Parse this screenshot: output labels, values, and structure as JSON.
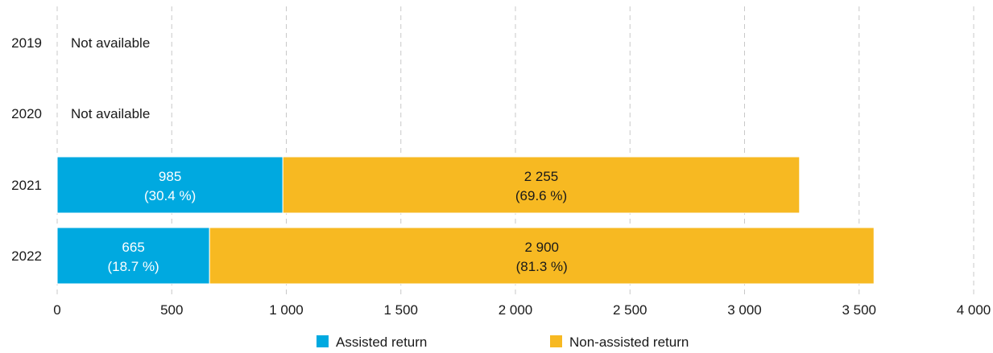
{
  "chart_data": {
    "type": "bar",
    "orientation": "horizontal",
    "stacked": true,
    "title": "",
    "xlabel": "",
    "ylabel": "",
    "categories": [
      "2019",
      "2020",
      "2021",
      "2022"
    ],
    "series": [
      {
        "name": "Assisted return",
        "color": "#00A9E0",
        "label_color": "#ffffff",
        "values": [
          null,
          null,
          985,
          665
        ],
        "labels": [
          "",
          "",
          "985",
          "665"
        ],
        "percent_labels": [
          "",
          "",
          "(30.4 %)",
          "(18.7 %)"
        ]
      },
      {
        "name": "Non-assisted return",
        "color": "#F7B922",
        "label_color": "#1a1a1a",
        "values": [
          null,
          null,
          2255,
          2900
        ],
        "labels": [
          "",
          "",
          "2 255",
          "2 900"
        ],
        "percent_labels": [
          "",
          "",
          "(69.6 %)",
          "(81.3 %)"
        ]
      }
    ],
    "unavailable_label": "Not available",
    "unavailable": [
      true,
      true,
      false,
      false
    ],
    "xlim": [
      0,
      4000
    ],
    "x_ticks": [
      0,
      500,
      1000,
      1500,
      2000,
      2500,
      3000,
      3500,
      4000
    ],
    "x_tick_labels": [
      "0",
      "500",
      "1 000",
      "1 500",
      "2 000",
      "2 500",
      "3 000",
      "3 500",
      "4 000"
    ],
    "grid": true,
    "grid_style": "dashed",
    "legend_position": "bottom-center"
  }
}
